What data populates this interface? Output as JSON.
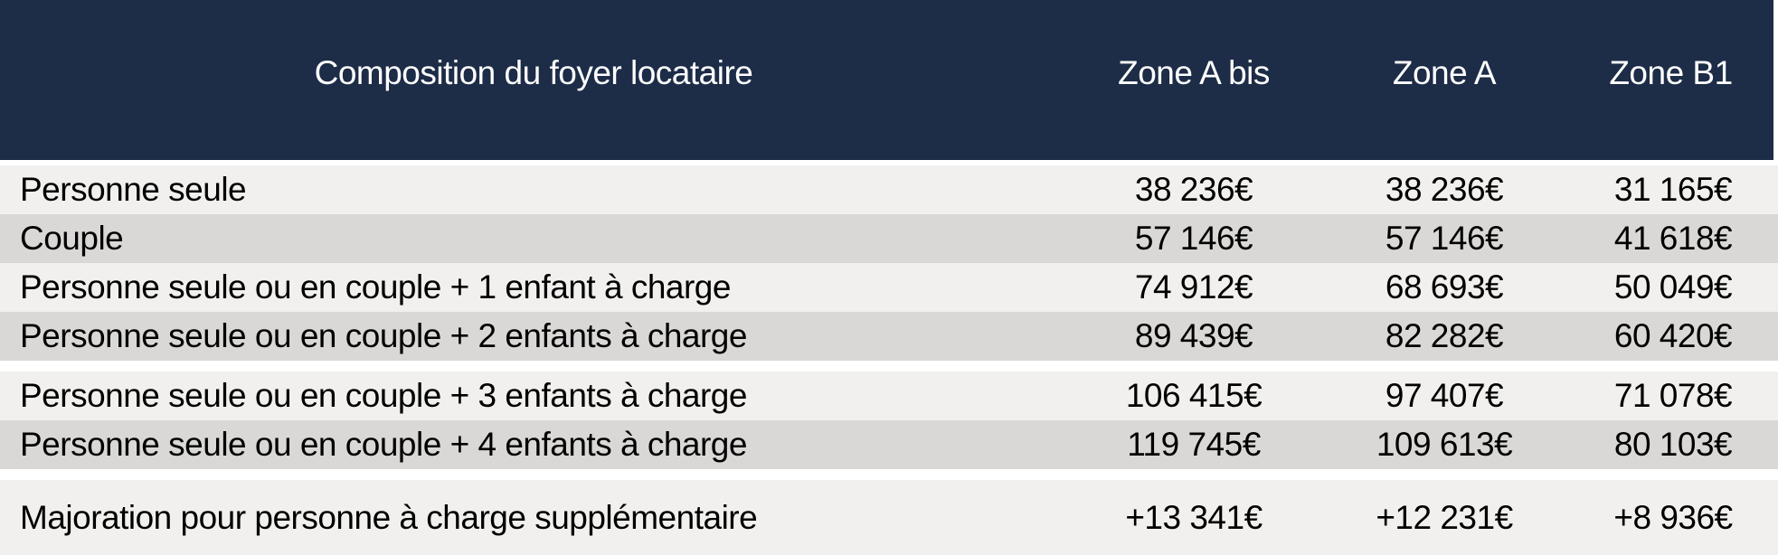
{
  "chart_data": {
    "type": "table",
    "columns": [
      "Composition du foyer locataire",
      "Zone A bis",
      "Zone A",
      "Zone B1"
    ],
    "rows": [
      {
        "label": "Personne seule",
        "values": [
          "38 236€",
          "38 236€",
          "31 165€"
        ]
      },
      {
        "label": "Couple",
        "values": [
          "57 146€",
          "57 146€",
          "41 618€"
        ]
      },
      {
        "label": "Personne seule ou en couple + 1 enfant à charge",
        "values": [
          "74 912€",
          "68 693€",
          "50 049€"
        ]
      },
      {
        "label": "Personne seule ou en couple + 2 enfants à charge",
        "values": [
          "89 439€",
          "82 282€",
          "60 420€"
        ]
      },
      {
        "label": "Personne seule ou en couple + 3 enfants à charge",
        "values": [
          "106 415€",
          "97 407€",
          "71 078€"
        ]
      },
      {
        "label": "Personne seule ou en couple + 4 enfants à charge",
        "values": [
          "119 745€",
          "109 613€",
          "80 103€"
        ]
      },
      {
        "label": "Majoration pour personne à charge supplémentaire",
        "values": [
          "+13 341€",
          "+12 231€",
          "+8 936€"
        ]
      }
    ],
    "layout": {
      "zebra_striping": true,
      "group_breaks_after_row_index": [
        3,
        5
      ],
      "first_column_align": "left",
      "value_columns_align": "center",
      "header_position": "top"
    }
  },
  "colors": {
    "header_background": "#1d2c47",
    "header_text": "#ffffff",
    "row_light": "#f1f0ee",
    "row_dark": "#d9d8d6",
    "separator": "#ffffff",
    "body_text": "#000000"
  }
}
